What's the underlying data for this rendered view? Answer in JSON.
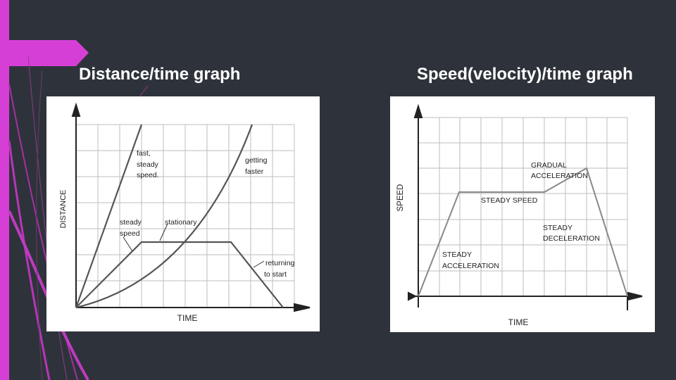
{
  "slide": {
    "left_heading": "Distance/time graph",
    "right_heading": "Speed(velocity)/time graph",
    "accent_color": "#d63fd6",
    "background_color": "#2e333b"
  },
  "distance_graph": {
    "y_axis_label": "DISTANCE",
    "x_axis_label": "TIME",
    "annotations": {
      "fast_steady_1": "fast,",
      "fast_steady_2": "steady",
      "fast_steady_3": "speed.",
      "getting_faster_1": "getting",
      "getting_faster_2": "faster",
      "steady_speed_1": "steady",
      "steady_speed_2": "speed",
      "stationary": "stationary",
      "returning_1": "returning",
      "returning_2": "to start"
    }
  },
  "speed_graph": {
    "y_axis_label": "SPEED",
    "x_axis_label": "TIME",
    "annotations": {
      "gradual_1": "GRADUAL",
      "gradual_2": "ACCELERATION",
      "steady_speed": "STEADY SPEED",
      "steady_decel_1": "STEADY",
      "steady_decel_2": "DECELERATION",
      "steady_accel_1": "STEADY",
      "steady_accel_2": "ACCELERATION"
    }
  }
}
